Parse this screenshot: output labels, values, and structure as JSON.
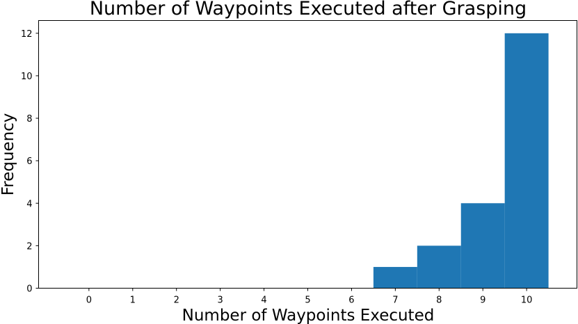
{
  "chart_data": {
    "type": "bar",
    "title": "Number of Waypoints Executed after Grasping",
    "xlabel": "Number of Waypoints Executed",
    "ylabel": "Frequency",
    "categories": [
      "0",
      "1",
      "2",
      "3",
      "4",
      "5",
      "6",
      "7",
      "8",
      "9",
      "10"
    ],
    "values": [
      0,
      0,
      0,
      0,
      0,
      0,
      0,
      1,
      2,
      4,
      12
    ],
    "xlim": [
      -1.15,
      11.15
    ],
    "ylim": [
      0,
      12.6
    ],
    "yticks": [
      0,
      2,
      4,
      6,
      8,
      10,
      12
    ],
    "grid": false,
    "color": "#1f77b4"
  }
}
